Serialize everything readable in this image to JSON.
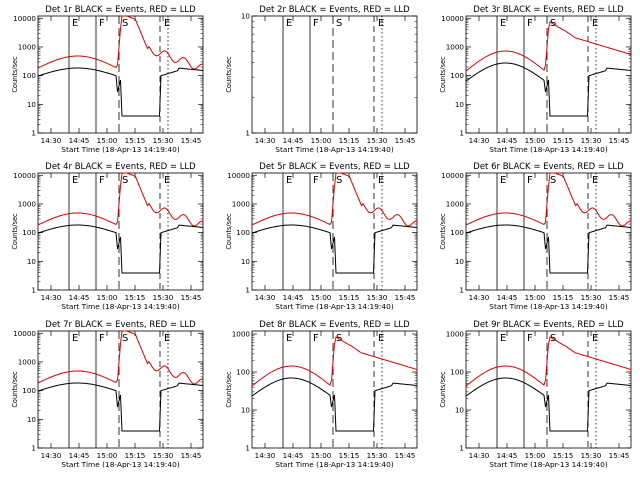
{
  "figure": {
    "background": "#ffffff",
    "event_color": "#000000",
    "lld_color": "#e00000"
  },
  "chart_data": [
    {
      "type": "line",
      "title": "Det 1r BLACK = Events, RED = LLD",
      "has_data": true,
      "xlabel": "Start Time (18-Apr-13 14:19:40)",
      "ylabel": "Counts/sec",
      "xticks": [
        "14:30",
        "14:45",
        "15:00",
        "15:15",
        "15:30",
        "15:45"
      ],
      "yticks": [
        "1",
        "10",
        "100",
        "1000",
        "10000"
      ],
      "xlim": [
        14.33,
        15.9
      ],
      "ylim": [
        1,
        12000
      ],
      "y_scale": "log",
      "markers": [
        "E",
        "F",
        "S",
        "E"
      ]
    },
    {
      "type": "line",
      "title": "Det 2r BLACK = Events, RED = LLD",
      "has_data": false,
      "xlabel": "Start Time (18-Apr-13 14:19:40)",
      "ylabel": "Counts/sec",
      "xticks": [
        "14:30",
        "14:45",
        "15:00",
        "15:15",
        "15:30",
        "15:45"
      ],
      "yticks": [
        "1",
        "10"
      ],
      "xlim": [
        14.33,
        15.9
      ],
      "ylim": [
        1,
        10
      ],
      "y_scale": "log",
      "markers": [
        "E",
        "F",
        "S",
        "E"
      ]
    },
    {
      "type": "line",
      "title": "Det 3r BLACK = Events, RED = LLD",
      "has_data": true,
      "xlabel": "Start Time (18-Apr-13 14:19:40)",
      "ylabel": "Counts/sec",
      "xticks": [
        "14:30",
        "14:45",
        "15:00",
        "15:15",
        "15:30",
        "15:45"
      ],
      "yticks": [
        "1",
        "10",
        "100",
        "1000",
        "10000"
      ],
      "xlim": [
        14.33,
        15.9
      ],
      "ylim": [
        1,
        12000
      ],
      "y_scale": "log",
      "markers": [
        "E",
        "F",
        "S",
        "E"
      ]
    },
    {
      "type": "line",
      "title": "Det 4r BLACK = Events, RED = LLD",
      "has_data": true,
      "xlabel": "Start Time (18-Apr-13 14:19:40)",
      "ylabel": "Counts/sec",
      "xticks": [
        "14:30",
        "14:45",
        "15:00",
        "15:15",
        "15:30",
        "15:45"
      ],
      "yticks": [
        "1",
        "10",
        "100",
        "1000",
        "10000"
      ],
      "xlim": [
        14.33,
        15.9
      ],
      "ylim": [
        1,
        12000
      ],
      "y_scale": "log",
      "markers": [
        "E",
        "F",
        "S",
        "E"
      ]
    },
    {
      "type": "line",
      "title": "Det 5r BLACK = Events, RED = LLD",
      "has_data": true,
      "xlabel": "Start Time (18-Apr-13 14:19:40)",
      "ylabel": "Counts/sec",
      "xticks": [
        "14:30",
        "14:45",
        "15:00",
        "15:15",
        "15:30",
        "15:45"
      ],
      "yticks": [
        "1",
        "10",
        "100",
        "1000",
        "10000"
      ],
      "xlim": [
        14.33,
        15.9
      ],
      "ylim": [
        1,
        12000
      ],
      "y_scale": "log",
      "markers": [
        "E",
        "F",
        "S",
        "E"
      ]
    },
    {
      "type": "line",
      "title": "Det 6r BLACK = Events, RED = LLD",
      "has_data": true,
      "xlabel": "Start Time (18-Apr-13 14:19:40)",
      "ylabel": "Counts/sec",
      "xticks": [
        "14:30",
        "14:45",
        "15:00",
        "15:15",
        "15:30",
        "15:45"
      ],
      "yticks": [
        "1",
        "10",
        "100",
        "1000",
        "10000"
      ],
      "xlim": [
        14.33,
        15.9
      ],
      "ylim": [
        1,
        12000
      ],
      "y_scale": "log",
      "markers": [
        "E",
        "F",
        "S",
        "E"
      ]
    },
    {
      "type": "line",
      "title": "Det 7r BLACK = Events, RED = LLD",
      "has_data": true,
      "xlabel": "Start Time (18-Apr-13 14:19:40)",
      "ylabel": "Counts/sec",
      "xticks": [
        "14:30",
        "14:45",
        "15:00",
        "15:15",
        "15:30",
        "15:45"
      ],
      "yticks": [
        "1",
        "10",
        "100",
        "1000",
        "10000"
      ],
      "xlim": [
        14.33,
        15.9
      ],
      "ylim": [
        1,
        12000
      ],
      "y_scale": "log",
      "markers": [
        "E",
        "F",
        "S",
        "E"
      ]
    },
    {
      "type": "line",
      "title": "Det 8r BLACK = Events, RED = LLD",
      "has_data": true,
      "xlabel": "Start Time (18-Apr-13 14:19:40)",
      "ylabel": "Counts/sec",
      "xticks": [
        "14:30",
        "14:45",
        "15:00",
        "15:15",
        "15:30",
        "15:45"
      ],
      "yticks": [
        "1",
        "10",
        "100",
        "1000"
      ],
      "xlim": [
        14.33,
        15.9
      ],
      "ylim": [
        1,
        1200
      ],
      "y_scale": "log",
      "markers": [
        "E",
        "F",
        "S",
        "E"
      ]
    },
    {
      "type": "line",
      "title": "Det 9r BLACK = Events, RED = LLD",
      "has_data": true,
      "xlabel": "Start Time (18-Apr-13 14:19:40)",
      "ylabel": "Counts/sec",
      "xticks": [
        "14:30",
        "14:45",
        "15:00",
        "15:15",
        "15:30",
        "15:45"
      ],
      "yticks": [
        "1",
        "10",
        "100",
        "1000"
      ],
      "xlim": [
        14.33,
        15.9
      ],
      "ylim": [
        1,
        1200
      ],
      "y_scale": "log",
      "markers": [
        "E",
        "F",
        "S",
        "E"
      ]
    }
  ]
}
